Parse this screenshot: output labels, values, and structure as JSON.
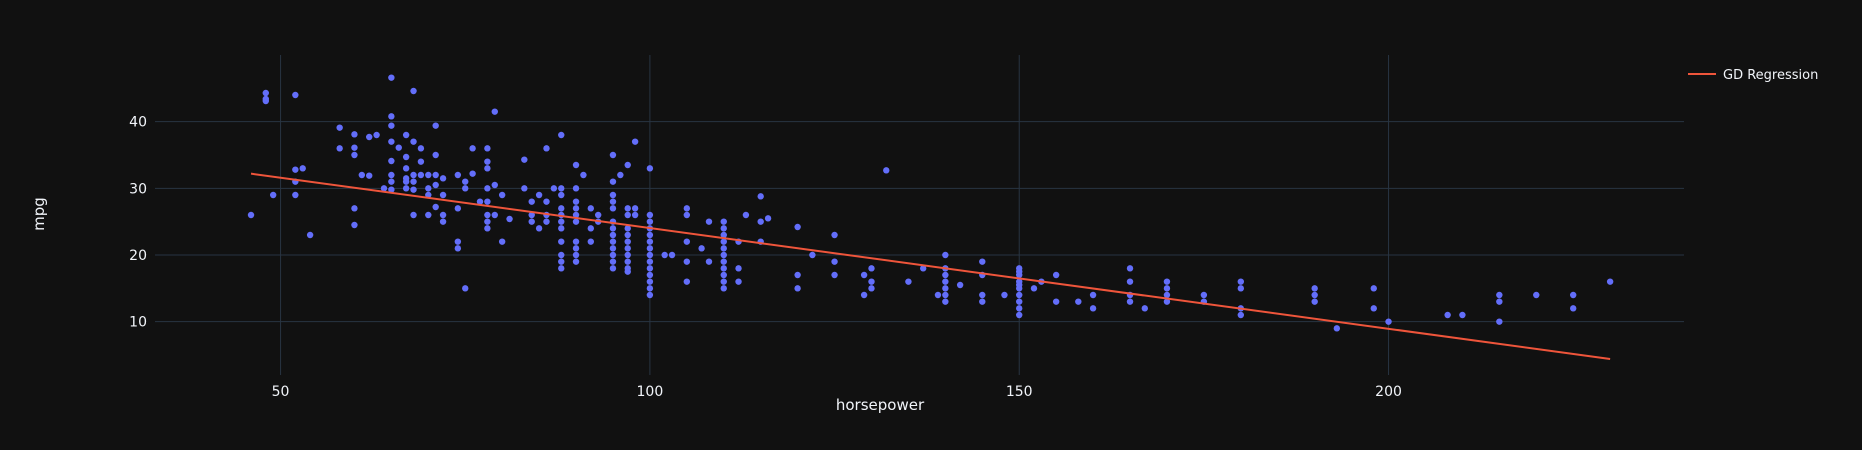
{
  "colors": {
    "background": "#111111",
    "grid": "#283442",
    "text": "#f2f5fa",
    "points": "#636efa",
    "regression_line": "#ef553b"
  },
  "chart_data": {
    "type": "scatter",
    "title": "",
    "xlabel": "horsepower",
    "ylabel": "mpg",
    "xlim": [
      33,
      240
    ],
    "ylim": [
      2,
      50
    ],
    "x_ticks": [
      50,
      100,
      150,
      200
    ],
    "y_ticks": [
      10,
      20,
      30,
      40
    ],
    "grid": true,
    "legend_position": "top-right",
    "series": [
      {
        "type": "scatter",
        "points": [
          [
            46,
            26
          ],
          [
            48,
            43.1
          ],
          [
            48,
            44.3
          ],
          [
            48,
            43.4
          ],
          [
            49,
            29
          ],
          [
            52,
            44
          ],
          [
            52,
            32.8
          ],
          [
            52,
            29
          ],
          [
            52,
            31
          ],
          [
            53,
            33
          ],
          [
            54,
            23
          ],
          [
            58,
            36
          ],
          [
            58,
            39.1
          ],
          [
            60,
            38.1
          ],
          [
            60,
            36.1
          ],
          [
            60,
            35
          ],
          [
            60,
            27
          ],
          [
            60,
            24.5
          ],
          [
            61,
            32
          ],
          [
            62,
            37.7
          ],
          [
            62,
            31.9
          ],
          [
            63,
            38
          ],
          [
            64,
            30
          ],
          [
            65,
            46.6
          ],
          [
            65,
            40.8
          ],
          [
            65,
            39.4
          ],
          [
            65,
            37
          ],
          [
            65,
            34.1
          ],
          [
            65,
            32
          ],
          [
            65,
            31
          ],
          [
            65,
            29.8
          ],
          [
            66,
            36.1
          ],
          [
            67,
            38
          ],
          [
            67,
            34.7
          ],
          [
            67,
            33
          ],
          [
            67,
            31.5
          ],
          [
            67,
            31
          ],
          [
            67,
            30
          ],
          [
            68,
            44.6
          ],
          [
            68,
            37
          ],
          [
            68,
            32
          ],
          [
            68,
            31
          ],
          [
            68,
            29.8
          ],
          [
            68,
            26
          ],
          [
            69,
            36
          ],
          [
            69,
            34
          ],
          [
            69,
            32
          ],
          [
            70,
            32
          ],
          [
            70,
            30
          ],
          [
            70,
            26
          ],
          [
            70,
            29
          ],
          [
            71,
            39.4
          ],
          [
            71,
            35
          ],
          [
            71,
            32
          ],
          [
            71,
            30.5
          ],
          [
            71,
            27.2
          ],
          [
            72,
            31.5
          ],
          [
            72,
            29
          ],
          [
            72,
            26
          ],
          [
            72,
            25
          ],
          [
            74,
            32
          ],
          [
            74,
            21
          ],
          [
            74,
            22
          ],
          [
            74,
            27
          ],
          [
            75,
            15
          ],
          [
            75,
            31
          ],
          [
            75,
            30
          ],
          [
            76,
            36
          ],
          [
            76,
            32.2
          ],
          [
            77,
            28
          ],
          [
            78,
            36
          ],
          [
            78,
            34
          ],
          [
            78,
            33
          ],
          [
            78,
            30
          ],
          [
            78,
            28
          ],
          [
            78,
            26
          ],
          [
            78,
            25
          ],
          [
            78,
            24
          ],
          [
            79,
            41.5
          ],
          [
            79,
            30.5
          ],
          [
            79,
            26
          ],
          [
            80,
            29
          ],
          [
            80,
            22
          ],
          [
            81,
            25.4
          ],
          [
            83,
            34.3
          ],
          [
            83,
            30
          ],
          [
            84,
            28
          ],
          [
            84,
            26
          ],
          [
            84,
            25
          ],
          [
            85,
            29
          ],
          [
            85,
            24
          ],
          [
            86,
            36
          ],
          [
            86,
            28
          ],
          [
            86,
            26
          ],
          [
            86,
            25
          ],
          [
            87,
            30
          ],
          [
            88,
            38
          ],
          [
            88,
            30
          ],
          [
            88,
            29
          ],
          [
            88,
            27
          ],
          [
            88,
            26
          ],
          [
            88,
            25
          ],
          [
            88,
            24
          ],
          [
            88,
            22
          ],
          [
            88,
            20
          ],
          [
            88,
            19
          ],
          [
            88,
            18
          ],
          [
            90,
            33.5
          ],
          [
            90,
            30
          ],
          [
            90,
            28
          ],
          [
            90,
            27
          ],
          [
            90,
            26
          ],
          [
            90,
            25
          ],
          [
            90,
            22
          ],
          [
            90,
            21
          ],
          [
            90,
            20
          ],
          [
            90,
            19
          ],
          [
            91,
            32
          ],
          [
            92,
            27
          ],
          [
            92,
            24
          ],
          [
            92,
            22
          ],
          [
            93,
            26
          ],
          [
            93,
            25
          ],
          [
            95,
            35
          ],
          [
            95,
            31
          ],
          [
            95,
            29
          ],
          [
            95,
            28
          ],
          [
            95,
            27
          ],
          [
            95,
            25
          ],
          [
            95,
            24
          ],
          [
            95,
            23
          ],
          [
            95,
            22
          ],
          [
            95,
            21
          ],
          [
            95,
            20
          ],
          [
            95,
            19
          ],
          [
            95,
            18
          ],
          [
            96,
            32
          ],
          [
            97,
            33.5
          ],
          [
            97,
            27
          ],
          [
            97,
            26
          ],
          [
            97,
            24
          ],
          [
            97,
            23
          ],
          [
            97,
            22
          ],
          [
            97,
            21
          ],
          [
            97,
            20
          ],
          [
            97,
            19
          ],
          [
            97,
            18
          ],
          [
            97,
            17.5
          ],
          [
            98,
            37
          ],
          [
            98,
            27
          ],
          [
            98,
            26
          ],
          [
            100,
            33
          ],
          [
            100,
            26
          ],
          [
            100,
            25
          ],
          [
            100,
            24
          ],
          [
            100,
            23
          ],
          [
            100,
            22
          ],
          [
            100,
            21
          ],
          [
            100,
            20
          ],
          [
            100,
            19
          ],
          [
            100,
            18
          ],
          [
            100,
            17
          ],
          [
            100,
            16
          ],
          [
            100,
            15
          ],
          [
            100,
            14
          ],
          [
            102,
            20
          ],
          [
            103,
            20
          ],
          [
            105,
            22
          ],
          [
            105,
            27
          ],
          [
            105,
            26
          ],
          [
            105,
            19
          ],
          [
            105,
            16
          ],
          [
            107,
            21
          ],
          [
            108,
            19
          ],
          [
            108,
            25
          ],
          [
            110,
            25
          ],
          [
            110,
            24
          ],
          [
            110,
            23
          ],
          [
            110,
            22
          ],
          [
            110,
            21
          ],
          [
            110,
            20
          ],
          [
            110,
            19
          ],
          [
            110,
            18
          ],
          [
            110,
            17
          ],
          [
            110,
            16
          ],
          [
            110,
            15
          ],
          [
            112,
            22
          ],
          [
            112,
            18
          ],
          [
            112,
            16
          ],
          [
            113,
            26
          ],
          [
            115,
            28.8
          ],
          [
            115,
            25
          ],
          [
            115,
            22
          ],
          [
            116,
            25.5
          ],
          [
            120,
            24.2
          ],
          [
            120,
            17
          ],
          [
            120,
            15
          ],
          [
            122,
            20
          ],
          [
            125,
            23
          ],
          [
            125,
            19
          ],
          [
            125,
            17
          ],
          [
            129,
            14
          ],
          [
            129,
            17
          ],
          [
            130,
            15
          ],
          [
            130,
            16
          ],
          [
            130,
            18
          ],
          [
            132,
            32.7
          ],
          [
            135,
            16
          ],
          [
            137,
            18
          ],
          [
            139,
            14
          ],
          [
            140,
            20
          ],
          [
            140,
            18
          ],
          [
            140,
            17
          ],
          [
            140,
            16
          ],
          [
            140,
            15
          ],
          [
            140,
            14
          ],
          [
            140,
            13
          ],
          [
            142,
            15.5
          ],
          [
            145,
            19
          ],
          [
            145,
            17
          ],
          [
            145,
            14
          ],
          [
            145,
            13
          ],
          [
            148,
            14
          ],
          [
            150,
            18
          ],
          [
            150,
            17.5
          ],
          [
            150,
            17
          ],
          [
            150,
            16
          ],
          [
            150,
            15.5
          ],
          [
            150,
            15
          ],
          [
            150,
            14
          ],
          [
            150,
            13
          ],
          [
            150,
            12
          ],
          [
            150,
            11
          ],
          [
            152,
            15
          ],
          [
            153,
            16
          ],
          [
            155,
            17
          ],
          [
            155,
            13
          ],
          [
            158,
            13
          ],
          [
            160,
            14
          ],
          [
            160,
            12
          ],
          [
            165,
            18
          ],
          [
            165,
            16
          ],
          [
            165,
            14
          ],
          [
            165,
            13
          ],
          [
            167,
            12
          ],
          [
            170,
            16
          ],
          [
            170,
            15
          ],
          [
            170,
            14
          ],
          [
            170,
            13
          ],
          [
            175,
            14
          ],
          [
            175,
            13
          ],
          [
            180,
            16
          ],
          [
            180,
            15
          ],
          [
            180,
            12
          ],
          [
            180,
            11
          ],
          [
            190,
            15
          ],
          [
            190,
            14
          ],
          [
            190,
            13
          ],
          [
            193,
            9
          ],
          [
            198,
            15
          ],
          [
            198,
            12
          ],
          [
            200,
            10
          ],
          [
            208,
            11
          ],
          [
            210,
            11
          ],
          [
            215,
            14
          ],
          [
            215,
            13
          ],
          [
            215,
            10
          ],
          [
            220,
            14
          ],
          [
            225,
            12
          ],
          [
            225,
            14
          ],
          [
            230,
            16
          ]
        ]
      },
      {
        "type": "line",
        "name": "GD Regression",
        "points": [
          [
            46,
            32.2
          ],
          [
            230,
            4.4
          ]
        ]
      }
    ]
  }
}
